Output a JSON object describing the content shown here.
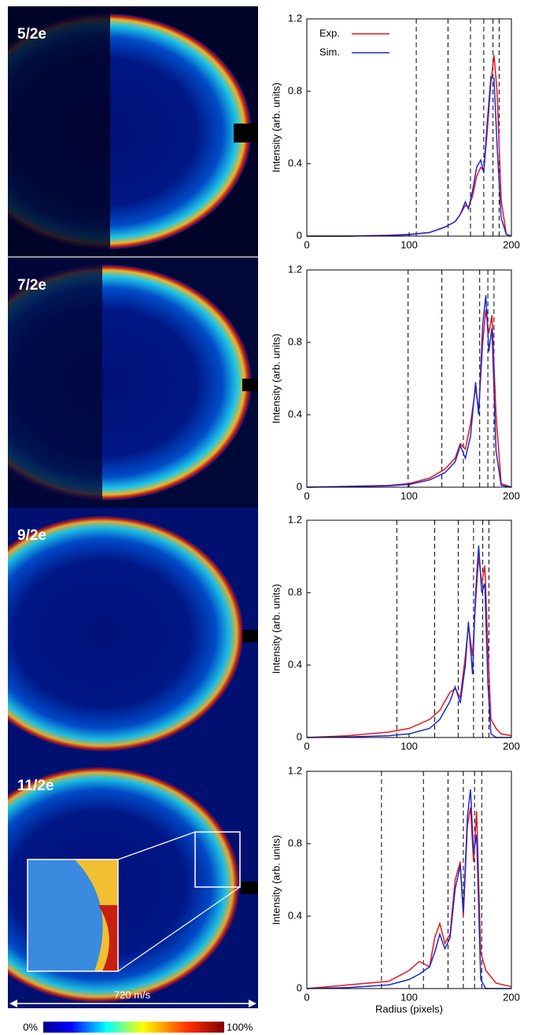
{
  "chart_data": [
    {
      "type": "line",
      "panel_label": "5/2e",
      "ylabel": "Intensity (arb. units)",
      "x": [
        0,
        40,
        80,
        100,
        120,
        135,
        145,
        150,
        155,
        158,
        162,
        166,
        170,
        173,
        176,
        180,
        183,
        186,
        190,
        195,
        200
      ],
      "series": [
        {
          "name": "Exp.",
          "color": "#e8141c",
          "values": [
            0,
            0,
            0.005,
            0.01,
            0.02,
            0.05,
            0.08,
            0.12,
            0.17,
            0.16,
            0.22,
            0.33,
            0.38,
            0.36,
            0.55,
            0.85,
            1.0,
            0.8,
            0.2,
            0.01,
            0
          ]
        },
        {
          "name": "Sim.",
          "color": "#1a2ad0",
          "values": [
            0,
            0,
            0.003,
            0.008,
            0.02,
            0.05,
            0.08,
            0.12,
            0.19,
            0.15,
            0.25,
            0.38,
            0.42,
            0.35,
            0.6,
            0.88,
            0.87,
            0.5,
            0.1,
            0.01,
            0
          ]
        }
      ],
      "vlines": [
        107,
        138,
        160,
        173,
        182,
        188
      ],
      "xlim": [
        0,
        200
      ],
      "xticks": [
        0,
        100,
        200
      ],
      "ylim": [
        0,
        1.2
      ],
      "yticks": [
        0,
        0.4,
        0.8,
        1.2
      ],
      "legend": "upper left"
    },
    {
      "type": "line",
      "panel_label": "7/2e",
      "ylabel": "Intensity (arb. units)",
      "x": [
        0,
        40,
        80,
        100,
        120,
        135,
        145,
        150,
        155,
        160,
        165,
        168,
        172,
        175,
        178,
        181,
        185,
        190,
        200
      ],
      "series": [
        {
          "color": "#e8141c",
          "values": [
            0,
            0.005,
            0.01,
            0.02,
            0.05,
            0.1,
            0.16,
            0.24,
            0.21,
            0.35,
            0.55,
            0.42,
            0.8,
            0.98,
            0.85,
            0.95,
            0.4,
            0.02,
            0
          ]
        },
        {
          "color": "#1a2ad0",
          "values": [
            0,
            0.003,
            0.008,
            0.015,
            0.04,
            0.08,
            0.14,
            0.23,
            0.16,
            0.28,
            0.58,
            0.4,
            0.9,
            1.06,
            0.75,
            0.88,
            0.2,
            0.01,
            0
          ]
        }
      ],
      "vlines": [
        99,
        132,
        153,
        169,
        177,
        183
      ],
      "xlim": [
        0,
        200
      ],
      "xticks": [
        0,
        100,
        200
      ],
      "ylim": [
        0,
        1.2
      ],
      "yticks": [
        0,
        0.4,
        0.8,
        1.2
      ]
    },
    {
      "type": "line",
      "panel_label": "9/2e",
      "ylabel": "Intensity (arb. units)",
      "x": [
        0,
        40,
        80,
        100,
        120,
        130,
        140,
        145,
        150,
        155,
        158,
        162,
        165,
        168,
        171,
        174,
        177,
        180,
        185,
        190,
        200
      ],
      "series": [
        {
          "color": "#e8141c",
          "values": [
            0,
            0.01,
            0.03,
            0.05,
            0.1,
            0.15,
            0.25,
            0.27,
            0.22,
            0.45,
            0.62,
            0.45,
            0.75,
            1.0,
            0.85,
            0.95,
            0.5,
            0.1,
            0.05,
            0.02,
            0.01
          ]
        },
        {
          "color": "#1a2ad0",
          "values": [
            0,
            0.003,
            0.01,
            0.02,
            0.05,
            0.1,
            0.2,
            0.28,
            0.19,
            0.4,
            0.64,
            0.35,
            0.8,
            1.06,
            0.8,
            0.85,
            0.3,
            0.02,
            0,
            0,
            0
          ]
        }
      ],
      "vlines": [
        88,
        125,
        148,
        163,
        172,
        178
      ],
      "xlim": [
        0,
        200
      ],
      "xticks": [
        0,
        100,
        200
      ],
      "ylim": [
        0,
        1.2
      ],
      "yticks": [
        0,
        0.4,
        0.8,
        1.2
      ]
    },
    {
      "type": "line",
      "panel_label": "11/2e",
      "ylabel": "Intensity (arb. units)",
      "xlabel": "Radius (pixels)",
      "x": [
        0,
        40,
        80,
        100,
        110,
        120,
        125,
        130,
        135,
        140,
        145,
        150,
        153,
        157,
        160,
        163,
        166,
        170,
        175,
        185,
        200
      ],
      "series": [
        {
          "color": "#e8141c",
          "values": [
            0,
            0.02,
            0.04,
            0.1,
            0.15,
            0.12,
            0.28,
            0.36,
            0.25,
            0.3,
            0.6,
            0.7,
            0.4,
            0.9,
            1.0,
            0.7,
            0.98,
            0.2,
            0.1,
            0.03,
            0.01
          ]
        },
        {
          "color": "#1a2ad0",
          "values": [
            0,
            0.005,
            0.02,
            0.05,
            0.08,
            0.12,
            0.2,
            0.3,
            0.22,
            0.28,
            0.55,
            0.68,
            0.42,
            0.95,
            1.1,
            0.75,
            0.85,
            0.05,
            0,
            0,
            0
          ]
        }
      ],
      "vlines": [
        73,
        114,
        138,
        153,
        164,
        171
      ],
      "xlim": [
        0,
        200
      ],
      "xticks": [
        0,
        100,
        200
      ],
      "ylim": [
        0,
        1.2
      ],
      "yticks": [
        0,
        0.4,
        0.8,
        1.2
      ]
    }
  ],
  "scale_bar_label": "720 m/s",
  "colorbar_min_label": "0%",
  "colorbar_max_label": "100%"
}
